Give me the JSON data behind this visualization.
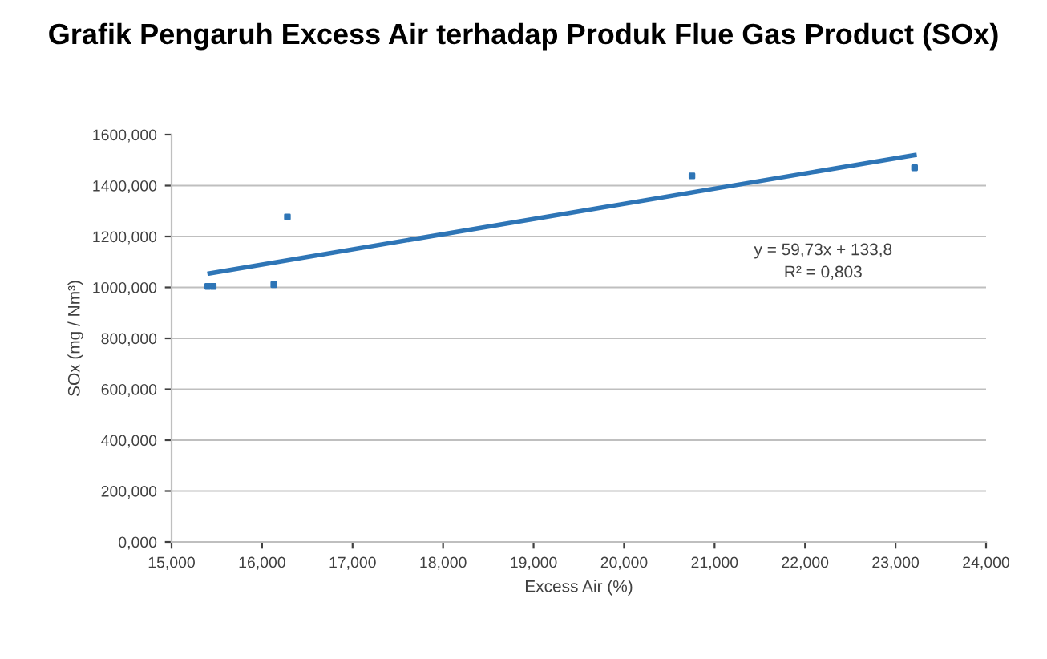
{
  "chart_data": {
    "type": "scatter",
    "title": "Grafik Pengaruh Excess Air terhadap Produk Flue Gas Product (SOx)",
    "xlabel": "Excess Air (%)",
    "ylabel": "SOx (mg / Nm³)",
    "series": [
      {
        "color": "#2e75b6",
        "marker": "square",
        "x": [
          15.4,
          15.46,
          16.13,
          16.28,
          20.75,
          23.21
        ],
        "values": [
          1004,
          1004,
          1011,
          1277,
          1438,
          1470
        ]
      },
      {
        "type": "line",
        "color": "#2e75b6",
        "x": [
          15.42,
          23.21
        ],
        "values": [
          1055,
          1520
        ]
      }
    ],
    "xlim": [
      15,
      24
    ],
    "xticks": [
      {
        "value": 15,
        "label": "15,000"
      },
      {
        "value": 16,
        "label": "16,000"
      },
      {
        "value": 17,
        "label": "17,000"
      },
      {
        "value": 18,
        "label": "18,000"
      },
      {
        "value": 19,
        "label": "19,000"
      },
      {
        "value": 20,
        "label": "20,000"
      },
      {
        "value": 21,
        "label": "21,000"
      },
      {
        "value": 22,
        "label": "22,000"
      },
      {
        "value": 23,
        "label": "23,000"
      },
      {
        "value": 24,
        "label": "24,000"
      }
    ],
    "ylim": [
      0,
      1600
    ],
    "yticks": [
      {
        "value": 0,
        "label": "0,000"
      },
      {
        "value": 200,
        "label": "200,000"
      },
      {
        "value": 400,
        "label": "400,000"
      },
      {
        "value": 600,
        "label": "600,000"
      },
      {
        "value": 800,
        "label": "800,000"
      },
      {
        "value": 1000,
        "label": "1000,000"
      },
      {
        "value": 1200,
        "label": "1200,000"
      },
      {
        "value": 1400,
        "label": "1400,000"
      },
      {
        "value": 1600,
        "label": "1600,000"
      }
    ],
    "grid": "y",
    "annotations": [
      "y = 59,73x + 133,8",
      "R² = 0,803"
    ]
  }
}
